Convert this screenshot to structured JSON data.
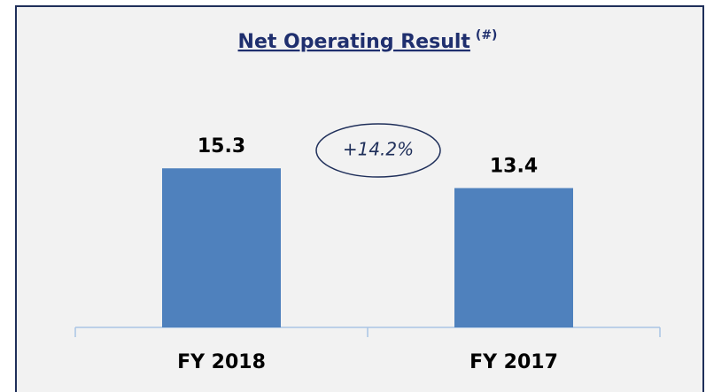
{
  "chart_data": {
    "type": "bar",
    "title": "Net Operating Result",
    "title_note": "(#)",
    "categories": [
      "FY 2018",
      "FY 2017"
    ],
    "values": [
      15.3,
      13.4
    ],
    "color": "#4f81bd",
    "ylim": [
      0,
      20
    ],
    "annotations": [
      "+14.2%"
    ]
  }
}
